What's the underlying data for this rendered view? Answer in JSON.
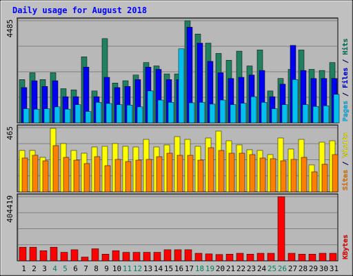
{
  "chart_data": {
    "title": "Daily usage for August 2018",
    "type": "bar",
    "categories": [
      "1",
      "2",
      "3",
      "4",
      "5",
      "6",
      "7",
      "8",
      "9",
      "10",
      "11",
      "12",
      "13",
      "14",
      "15",
      "16",
      "17",
      "18",
      "19",
      "20",
      "21",
      "22",
      "23",
      "24",
      "25",
      "26",
      "27",
      "28",
      "29",
      "30",
      "31"
    ],
    "weekend_days": [
      "4",
      "5",
      "11",
      "12",
      "18",
      "19",
      "25",
      "26"
    ],
    "panels": [
      {
        "name": "hits-files-pages",
        "ymax_label": "4485",
        "ymax": 4485,
        "side_labels": [
          {
            "text": "Pages",
            "color": "#00c0ff"
          },
          {
            "text": " / ",
            "color": "#000080"
          },
          {
            "text": "Files",
            "color": "#0000ff"
          },
          {
            "text": " / ",
            "color": "#000080"
          },
          {
            "text": "Hits",
            "color": "#008060"
          }
        ],
        "series": [
          {
            "name": "Hits",
            "color": "#208060",
            "values": [
              1900,
              2200,
              1900,
              2200,
              1500,
              1450,
              2900,
              1400,
              3700,
              1750,
              1850,
              2100,
              2650,
              2500,
              2150,
              2150,
              4485,
              3900,
              3500,
              3050,
              2750,
              3150,
              2500,
              3200,
              1400,
              1950,
              2350,
              3200,
              2350,
              2300,
              2650
            ]
          },
          {
            "name": "Files",
            "color": "#0000f0",
            "values": [
              1550,
              1850,
              1600,
              1850,
              1150,
              1150,
              2450,
              1150,
              2000,
              1550,
              1600,
              1900,
              2450,
              2350,
              1900,
              1900,
              4200,
              3500,
              2700,
              2200,
              1950,
              2000,
              2100,
              2300,
              1150,
              1700,
              3400,
              2300,
              1950,
              1950,
              1950
            ]
          },
          {
            "name": "Pages",
            "color": "#00c0f0",
            "values": [
              620,
              600,
              620,
              700,
              600,
              800,
              500,
              900,
              850,
              800,
              780,
              700,
              1400,
              1000,
              900,
              3250,
              880,
              900,
              820,
              1000,
              800,
              860,
              1150,
              900,
              620,
              800,
              1900,
              800,
              720,
              750,
              1250
            ]
          }
        ]
      },
      {
        "name": "visits-sites",
        "ymax_label": "465",
        "ymax": 465,
        "side_labels": [
          {
            "text": "Sites",
            "color": "#ff8000"
          },
          {
            "text": " / ",
            "color": "#000080"
          },
          {
            "text": "Visits",
            "color": "#ffff00"
          }
        ],
        "series": [
          {
            "name": "Visits",
            "color": "#ffff00",
            "values": [
              300,
              300,
              250,
              460,
              350,
              300,
              280,
              325,
              330,
              350,
              330,
              325,
              380,
              325,
              340,
              400,
              380,
              330,
              390,
              440,
              370,
              340,
              305,
              300,
              270,
              390,
              310,
              380,
              195,
              360,
              370
            ]
          },
          {
            "name": "Sites",
            "color": "#ff8000",
            "values": [
              245,
              265,
              225,
              335,
              250,
              230,
              205,
              255,
              190,
              235,
              220,
              230,
              235,
              255,
              280,
              265,
              265,
              230,
              320,
              300,
              280,
              280,
              270,
              245,
              240,
              225,
              235,
              250,
              145,
              200,
              270
            ]
          }
        ]
      },
      {
        "name": "kbytes",
        "ymax_label": "404419",
        "ymax": 404419,
        "side_labels": [
          {
            "text": "KBytes",
            "color": "#ff0000"
          }
        ],
        "series": [
          {
            "name": "KBytes",
            "color": "#ff0000",
            "values": [
              86000,
              86000,
              64000,
              86000,
              54000,
              70000,
              24000,
              76000,
              42000,
              64000,
              54000,
              54000,
              54000,
              54000,
              70000,
              70000,
              70000,
              48000,
              44000,
              40000,
              42000,
              48000,
              42000,
              48000,
              48000,
              404419,
              48000,
              42000,
              42000,
              48000,
              48000
            ]
          }
        ]
      }
    ]
  },
  "colors": {
    "frame_bg": "#c0c0c0",
    "plot_bg": "#b8b8b8",
    "title_color": "#0000ff",
    "weekday_label_color": "#000000",
    "weekend_label_color": "#008060"
  }
}
